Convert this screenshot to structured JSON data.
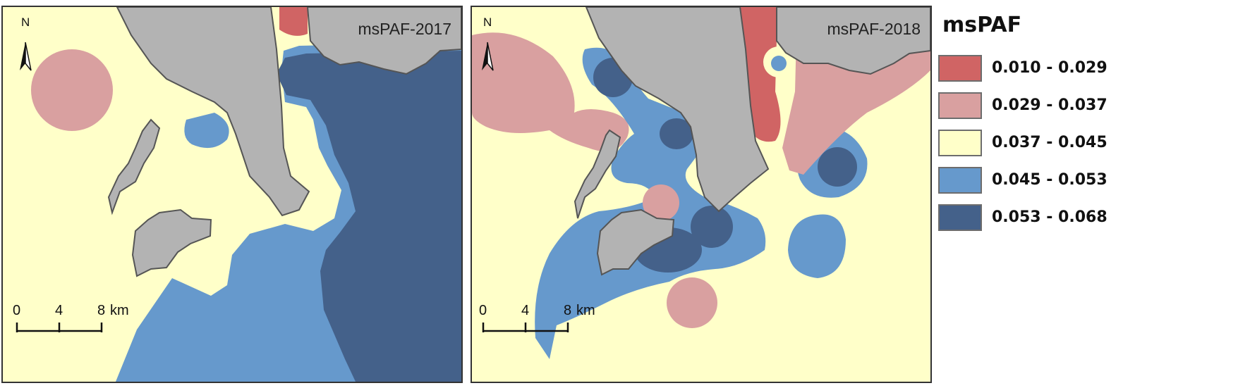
{
  "panels": [
    {
      "title": "msPAF-2017",
      "north": "N",
      "scale_ticks": [
        "0",
        "4",
        "8"
      ],
      "scale_unit": "km"
    },
    {
      "title": "msPAF-2018",
      "north": "N",
      "scale_ticks": [
        "0",
        "4",
        "8"
      ],
      "scale_unit": "km"
    }
  ],
  "legend": {
    "title": "msPAF",
    "classes": [
      {
        "label": "0.010 - 0.029",
        "color": "#d06464"
      },
      {
        "label": "0.029 - 0.037",
        "color": "#d9a0a0"
      },
      {
        "label": "0.037 - 0.045",
        "color": "#ffffc9"
      },
      {
        "label": "0.045 - 0.053",
        "color": "#6699cc"
      },
      {
        "label": "0.053 - 0.068",
        "color": "#44618a"
      }
    ]
  },
  "colors": {
    "land": "#b3b3b3",
    "coastline": "#555555",
    "border": "#333333"
  }
}
